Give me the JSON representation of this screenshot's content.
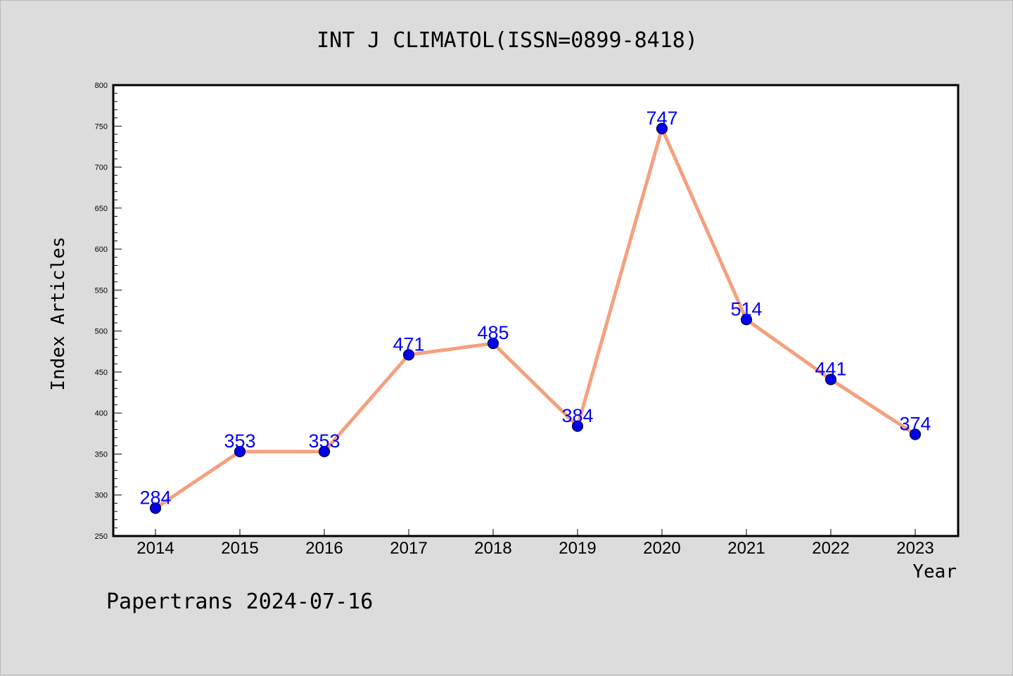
{
  "chart_data": {
    "type": "line",
    "title": "INT J CLIMATOL(ISSN=0899-8418)",
    "xlabel": "Year",
    "ylabel": "Index Articles",
    "categories": [
      "2014",
      "2015",
      "2016",
      "2017",
      "2018",
      "2019",
      "2020",
      "2021",
      "2022",
      "2023"
    ],
    "values": [
      284,
      353,
      353,
      471,
      485,
      384,
      747,
      514,
      441,
      374
    ],
    "data_labels": [
      "284",
      "353",
      "353",
      "471",
      "485",
      "384",
      "747",
      "514",
      "441",
      "374"
    ],
    "ylim": [
      250,
      800
    ],
    "y_ticks": [
      "250",
      "300",
      "350",
      "400",
      "450",
      "500",
      "550",
      "600",
      "650",
      "700",
      "750",
      "800"
    ],
    "grid": false,
    "legend": "none",
    "colors": {
      "line": "#f4a07e",
      "marker": "#0000ee",
      "label": "#0000ff",
      "background": "#dcdcdc",
      "plot_background": "#ffffff"
    }
  },
  "footer": {
    "credit": "Papertrans 2024-07-16"
  }
}
